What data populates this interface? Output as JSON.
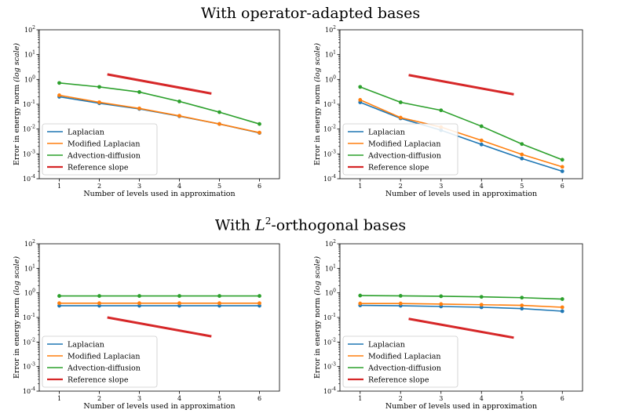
{
  "sections": {
    "top_title": "With operator-adapted bases",
    "bottom_title_prefix": "With ",
    "bottom_title_symbol": "L",
    "bottom_title_sup": "2",
    "bottom_title_suffix": "-orthogonal bases"
  },
  "colors": {
    "laplacian": "#1f77b4",
    "modified_laplacian": "#ff7f0e",
    "advection_diffusion": "#2ca02c",
    "reference": "#d62728"
  },
  "chart_data": [
    {
      "type": "line",
      "section": "With operator-adapted bases",
      "xlabel": "Number of levels used in approximation",
      "ylabel": "Error in energy norm (log scale)",
      "yscale": "log",
      "x": [
        1,
        2,
        3,
        4,
        5,
        6
      ],
      "xticks": [
        "1",
        "2",
        "3",
        "4",
        "5",
        "6"
      ],
      "ylim": [
        0.0001,
        100
      ],
      "series": [
        {
          "name": "Laplacian",
          "color": "#1f77b4",
          "values": [
            0.2,
            0.11,
            0.065,
            0.033,
            0.016,
            0.007
          ]
        },
        {
          "name": "Modified Laplacian",
          "color": "#ff7f0e",
          "values": [
            0.23,
            0.12,
            0.068,
            0.034,
            0.016,
            0.0072
          ]
        },
        {
          "name": "Advection-diffusion",
          "color": "#2ca02c",
          "values": [
            0.72,
            0.5,
            0.31,
            0.13,
            0.048,
            0.016
          ]
        },
        {
          "name": "Reference slope",
          "color": "#d62728",
          "x": [
            2.2,
            4.8
          ],
          "values": [
            1.6,
            0.27
          ],
          "markers": false
        }
      ],
      "legend_position": "lower-left"
    },
    {
      "type": "line",
      "section": "With operator-adapted bases",
      "xlabel": "Number of levels used in approximation",
      "ylabel": "Error in energy norm (log scale)",
      "yscale": "log",
      "x": [
        1,
        2,
        3,
        4,
        5,
        6
      ],
      "xticks": [
        "1",
        "2",
        "3",
        "4",
        "5",
        "6"
      ],
      "ylim": [
        0.0001,
        100
      ],
      "series": [
        {
          "name": "Laplacian",
          "color": "#1f77b4",
          "values": [
            0.12,
            0.027,
            0.009,
            0.0024,
            0.00065,
            0.0002
          ]
        },
        {
          "name": "Modified Laplacian",
          "color": "#ff7f0e",
          "values": [
            0.15,
            0.029,
            0.012,
            0.0035,
            0.00095,
            0.0003
          ]
        },
        {
          "name": "Advection-diffusion",
          "color": "#2ca02c",
          "values": [
            0.5,
            0.12,
            0.057,
            0.013,
            0.0025,
            0.00058
          ]
        },
        {
          "name": "Reference slope",
          "color": "#d62728",
          "x": [
            2.2,
            4.8
          ],
          "values": [
            1.5,
            0.25
          ],
          "markers": false
        }
      ],
      "legend_position": "lower-left"
    },
    {
      "type": "line",
      "section": "With L2-orthogonal bases",
      "xlabel": "Number of levels used in approximation",
      "ylabel": "Error in energy norm (log scale)",
      "yscale": "log",
      "x": [
        1,
        2,
        3,
        4,
        5,
        6
      ],
      "xticks": [
        "1",
        "2",
        "3",
        "4",
        "5",
        "6"
      ],
      "ylim": [
        0.0001,
        100
      ],
      "series": [
        {
          "name": "Laplacian",
          "color": "#1f77b4",
          "values": [
            0.3,
            0.3,
            0.3,
            0.3,
            0.3,
            0.3
          ]
        },
        {
          "name": "Modified Laplacian",
          "color": "#ff7f0e",
          "values": [
            0.38,
            0.38,
            0.38,
            0.38,
            0.38,
            0.38
          ]
        },
        {
          "name": "Advection-diffusion",
          "color": "#2ca02c",
          "values": [
            0.75,
            0.75,
            0.75,
            0.75,
            0.75,
            0.75
          ]
        },
        {
          "name": "Reference slope",
          "color": "#d62728",
          "x": [
            2.2,
            4.8
          ],
          "values": [
            0.1,
            0.017
          ],
          "markers": false
        }
      ],
      "legend_position": "lower-left"
    },
    {
      "type": "line",
      "section": "With L2-orthogonal bases",
      "xlabel": "Number of levels used in approximation",
      "ylabel": "Error in energy norm (log scale)",
      "yscale": "log",
      "x": [
        1,
        2,
        3,
        4,
        5,
        6
      ],
      "xticks": [
        "1",
        "2",
        "3",
        "4",
        "5",
        "6"
      ],
      "ylim": [
        0.0001,
        100
      ],
      "series": [
        {
          "name": "Laplacian",
          "color": "#1f77b4",
          "values": [
            0.31,
            0.3,
            0.28,
            0.26,
            0.23,
            0.18
          ]
        },
        {
          "name": "Modified Laplacian",
          "color": "#ff7f0e",
          "values": [
            0.37,
            0.37,
            0.35,
            0.33,
            0.31,
            0.26
          ]
        },
        {
          "name": "Advection-diffusion",
          "color": "#2ca02c",
          "values": [
            0.78,
            0.76,
            0.73,
            0.69,
            0.64,
            0.56
          ]
        },
        {
          "name": "Reference slope",
          "color": "#d62728",
          "x": [
            2.2,
            4.8
          ],
          "values": [
            0.088,
            0.015
          ],
          "markers": false
        }
      ],
      "legend_position": "lower-left"
    }
  ]
}
